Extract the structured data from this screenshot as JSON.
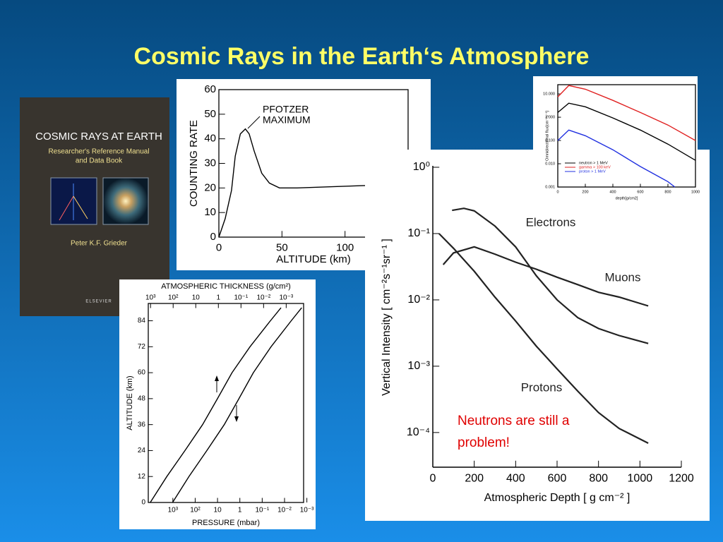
{
  "title": "Cosmic Rays in the Earth‘s Atmosphere",
  "book": {
    "title": "COSMIC RAYS AT EARTH",
    "subtitle": [
      "Researcher's Reference Manual",
      "and Data Book"
    ],
    "author": "Peter K.F. Grieder",
    "publisher": "ELSEVIER"
  },
  "note": "Neutrons are still a problem!",
  "chart_data": [
    {
      "type": "line",
      "xlabel": "ALTITUDE (km)",
      "ylabel": "COUNTING RATE",
      "annotation": [
        "PFOTZER",
        "MAXIMUM"
      ],
      "xlim": [
        0,
        150
      ],
      "xticks": [
        0,
        50,
        100
      ],
      "ylim": [
        0,
        60
      ],
      "yticks": [
        0,
        10,
        20,
        30,
        40,
        50,
        60
      ],
      "series": [
        {
          "color": "#000000",
          "x": [
            0,
            5,
            10,
            13,
            17,
            21,
            24,
            28,
            34,
            40,
            48,
            62,
            116
          ],
          "values": [
            0,
            7.5,
            19,
            33,
            42,
            44,
            42,
            35,
            26,
            22,
            20,
            20,
            21
          ]
        }
      ]
    },
    {
      "type": "line",
      "x2label": "ATMOSPHERIC THICKNESS (g/cm²)",
      "xlabel": "PRESSURE (mbar)",
      "ylabel": "ALTITUDE (km)",
      "xlog": true,
      "x2lim": [
        1260,
        0.00017
      ],
      "x2ticks": [
        {
          "value": 1000,
          "label": "10³"
        },
        {
          "value": 100,
          "label": "10²"
        },
        10,
        1,
        {
          "value": 0.1,
          "label": "10⁻¹"
        },
        {
          "value": 0.01,
          "label": "10⁻²"
        },
        {
          "value": 0.001,
          "label": "10⁻³"
        }
      ],
      "xlim": [
        12600,
        0.0014
      ],
      "xticks": [
        {
          "value": 1000,
          "label": "10³"
        },
        {
          "value": 100,
          "label": "10²"
        },
        10,
        1,
        {
          "value": 0.1,
          "label": "10⁻¹"
        },
        {
          "value": 0.01,
          "label": "10⁻²"
        },
        {
          "value": 0.001,
          "label": "10⁻³"
        }
      ],
      "ylim": [
        0,
        92
      ],
      "yticks": [
        0,
        12,
        24,
        36,
        48,
        60,
        72,
        84
      ],
      "series": [
        {
          "color": "#000000",
          "axis": "x2",
          "x": [
            1030,
            190,
            30,
            5,
            1.1,
            0.25,
            0.04,
            0.005,
            0.0017
          ],
          "values": [
            0,
            12,
            24,
            36,
            48,
            60,
            72,
            84,
            90
          ]
        },
        {
          "color": "#000000",
          "x": [
            1030,
            190,
            30,
            5,
            1.1,
            0.25,
            0.04,
            0.005,
            0.0017
          ],
          "values": [
            0,
            12,
            24,
            36,
            48,
            60,
            72,
            84,
            90
          ]
        }
      ]
    },
    {
      "type": "line",
      "xlabel": "Atmospheric Depth [ g cm⁻² ]",
      "ylabel": "Vertical Intensity [ cm⁻²s⁻¹sr⁻¹ ]",
      "ylog": true,
      "xlim": [
        0,
        1200
      ],
      "xticks": [
        0,
        200,
        400,
        600,
        800,
        1000,
        1200
      ],
      "ylim": [
        3e-05,
        1
      ],
      "yticks": [
        {
          "value": 1,
          "label": "10⁰"
        },
        {
          "value": 0.1,
          "label": "10⁻¹"
        },
        {
          "value": 0.01,
          "label": "10⁻²"
        },
        {
          "value": 0.001,
          "label": "10⁻³"
        },
        {
          "value": 0.0001,
          "label": "10⁻⁴"
        }
      ],
      "series": [
        {
          "name": "Electrons",
          "color": "#222222",
          "x": [
            93,
            150,
            200,
            300,
            400,
            500,
            600,
            700,
            800,
            900,
            1040
          ],
          "values": [
            0.224,
            0.24,
            0.22,
            0.13,
            0.063,
            0.023,
            0.01,
            0.0054,
            0.0037,
            0.0029,
            0.0022
          ]
        },
        {
          "name": "Muons",
          "color": "#222222",
          "x": [
            50,
            100,
            200,
            300,
            400,
            500,
            600,
            700,
            800,
            900,
            1040
          ],
          "values": [
            0.034,
            0.051,
            0.063,
            0.049,
            0.037,
            0.029,
            0.022,
            0.017,
            0.013,
            0.011,
            0.0081
          ]
        },
        {
          "name": "Protons",
          "color": "#222222",
          "x": [
            30,
            100,
            200,
            300,
            400,
            500,
            600,
            700,
            800,
            900,
            1040
          ],
          "values": [
            0.1,
            0.06,
            0.027,
            0.011,
            0.0048,
            0.002,
            0.00091,
            0.00042,
            0.0002,
            0.000115,
            6.9e-05
          ]
        }
      ]
    },
    {
      "type": "line",
      "xlabel": "depth[g/cm2]",
      "ylabel": "Omnidirectional flux[cm⁻²s⁻¹]",
      "ylog": true,
      "legend": "upper left",
      "xlim": [
        0,
        1000
      ],
      "xticks": [
        0,
        200,
        400,
        600,
        800,
        1000
      ],
      "ylim": [
        0.001,
        25
      ],
      "yticks": [
        0.001,
        {
          "value": 0.01,
          "label": "0.010"
        },
        {
          "value": 0.1,
          "label": "0.100"
        },
        {
          "value": 1,
          "label": "1.000"
        },
        {
          "value": 10,
          "label": "10.000"
        }
      ],
      "series": [
        {
          "name": "neutron > 1 MeV",
          "color": "#000000",
          "x": [
            0,
            80,
            200,
            400,
            600,
            800,
            1000
          ],
          "values": [
            1.6,
            4,
            2.8,
            0.93,
            0.28,
            0.07,
            0.014
          ]
        },
        {
          "name": "gamma > 100 keV",
          "color": "#e02020",
          "x": [
            0,
            80,
            200,
            400,
            600,
            800,
            1000
          ],
          "values": [
            7.5,
            23,
            16,
            5.3,
            1.6,
            0.46,
            0.1
          ]
        },
        {
          "name": "proton > 1 MeV",
          "color": "#2030e0",
          "x": [
            0,
            80,
            200,
            400,
            600,
            800,
            850
          ],
          "values": [
            0.1,
            0.28,
            0.16,
            0.04,
            0.0076,
            0.0017,
            0.001
          ]
        }
      ]
    }
  ]
}
